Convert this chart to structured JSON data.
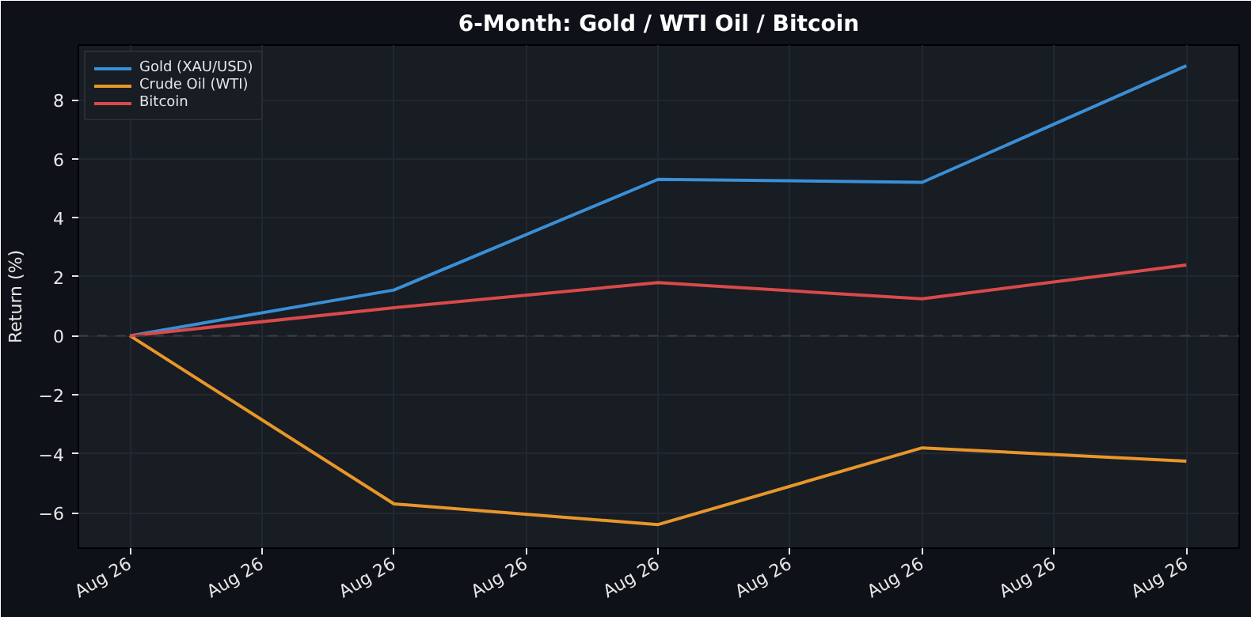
{
  "chart_data": {
    "type": "line",
    "title": "6-Month: Gold / WTI Oil / Bitcoin",
    "ylabel": "Return (%)",
    "categories": [
      "Aug 26",
      "Aug 26",
      "Aug 26",
      "Aug 26",
      "Aug 26",
      "Aug 26",
      "Aug 26",
      "Aug 26",
      "Aug 26"
    ],
    "series": [
      {
        "name": "Gold (XAU/USD)",
        "color": "#3a8fd6",
        "values": [
          0,
          null,
          1.55,
          null,
          5.3,
          null,
          5.2,
          null,
          9.15
        ]
      },
      {
        "name": "Crude Oil (WTI)",
        "color": "#e8962a",
        "values": [
          0,
          null,
          -5.7,
          null,
          -6.4,
          null,
          -3.8,
          null,
          -4.25
        ]
      },
      {
        "name": "Bitcoin",
        "color": "#d94a4a",
        "values": [
          0,
          null,
          0.95,
          null,
          1.8,
          null,
          1.25,
          null,
          2.4
        ]
      }
    ],
    "ylim": [
      -7.2,
      9.85
    ],
    "yticks": [
      {
        "value": -6,
        "label": "−6"
      },
      {
        "value": -4,
        "label": "−4"
      },
      {
        "value": -2,
        "label": "−2"
      },
      0,
      2,
      4,
      6,
      8
    ],
    "ref_lines": [
      {
        "axis": "y",
        "value": 0,
        "color": "#3a3f47",
        "line_style": "dashed"
      }
    ],
    "grid": true,
    "legend": "top left",
    "marker": "none",
    "line_style": "solid"
  }
}
